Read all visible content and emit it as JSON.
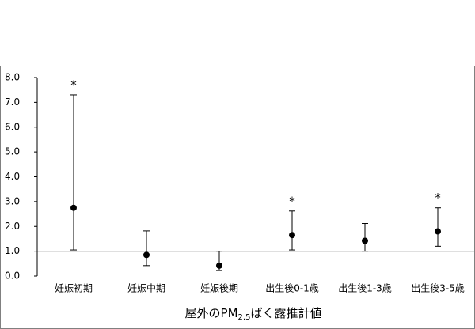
{
  "chart_data": {
    "type": "errorbar",
    "categories": [
      "妊娠初期",
      "妊娠中期",
      "妊娠後期",
      "出生後0-1歳",
      "出生後1-3歳",
      "出生後3-5歳"
    ],
    "values": [
      2.75,
      0.85,
      0.42,
      1.65,
      1.42,
      1.8
    ],
    "lower": [
      1.05,
      0.42,
      0.22,
      1.05,
      1.0,
      1.2
    ],
    "upper": [
      7.3,
      1.82,
      1.0,
      2.62,
      2.12,
      2.75
    ],
    "significance": [
      "*",
      null,
      null,
      "*",
      null,
      "*"
    ],
    "color": "#000000",
    "reference_line": 1,
    "ylim": [
      0,
      8
    ],
    "yticks": [
      {
        "value": 0,
        "label": "0.0"
      },
      {
        "value": 1,
        "label": "1.0"
      },
      {
        "value": 2,
        "label": "2.0"
      },
      {
        "value": 3,
        "label": "3.0"
      },
      {
        "value": 4,
        "label": "4.0"
      },
      {
        "value": 5,
        "label": "5.0"
      },
      {
        "value": 6,
        "label": "6.0"
      },
      {
        "value": 7,
        "label": "7.0"
      },
      {
        "value": 8,
        "label": "8.0"
      }
    ],
    "x_label": {
      "main": "屋外のPM",
      "sub": "2.5",
      "rest": "ばく露推計値"
    }
  }
}
